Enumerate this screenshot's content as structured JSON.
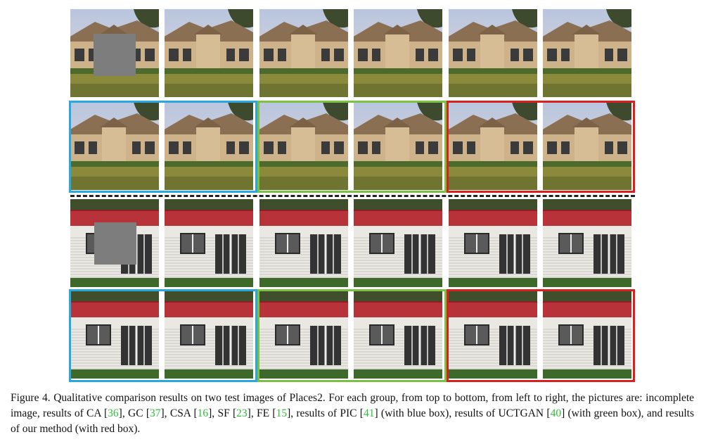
{
  "caption": {
    "label": "Figure 4.",
    "text_1": " Qualitative comparison results on two test images of Places2.  For each group, from top to bottom, from left to right, the pictures are:  incomplete image, results of CA [",
    "cite_ca": "36",
    "text_2": "], GC [",
    "cite_gc": "37",
    "text_3": "], CSA [",
    "cite_csa": "16",
    "text_4": "], SF [",
    "cite_sf": "23",
    "text_5": "], FE [",
    "cite_fe": "15",
    "text_6": "], results of PIC [",
    "cite_pic": "41",
    "text_7": "] (with blue box), results of UCTGAN [",
    "cite_uctgan": "40",
    "text_8": "] (with green box), and results of our method (with red box)."
  },
  "colors": {
    "pic_box": "#29a8e0",
    "uctgan_box": "#7ac142",
    "ours_box": "#d9201e",
    "citation": "#2fbf3a"
  }
}
